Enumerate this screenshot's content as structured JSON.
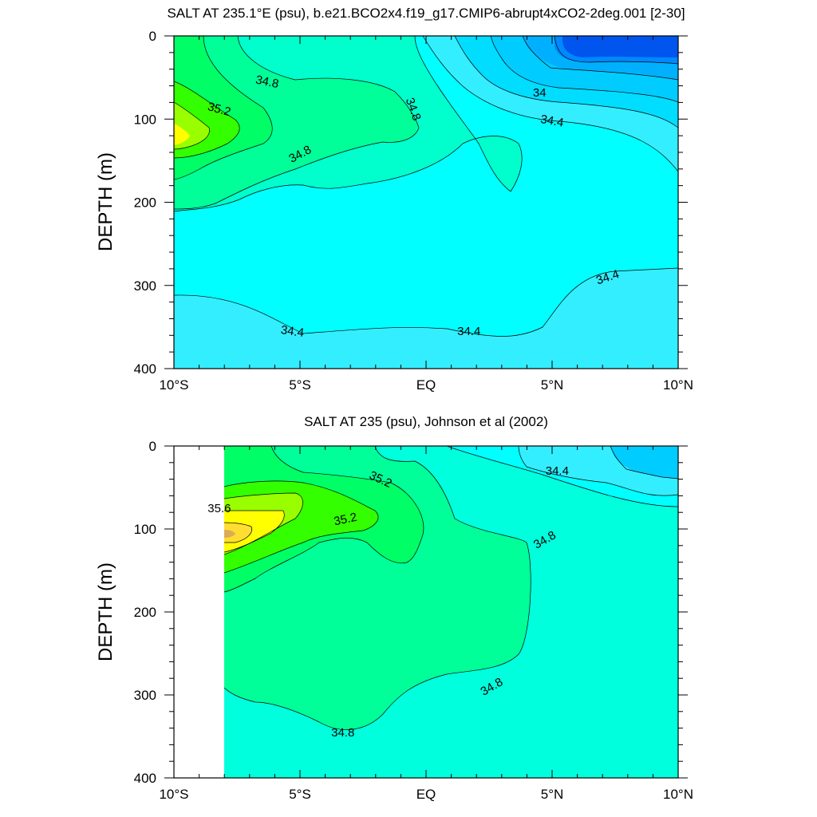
{
  "chart_data": [
    {
      "type": "contour",
      "title": "SALT AT 235.1°E (psu), b.e21.BCO2x4.f19_g17.CMIP6-abrupt4xCO2-2deg.001 [2-30]",
      "xlabel": "",
      "ylabel": "DEPTH (m)",
      "xlim": [
        -10,
        10
      ],
      "ylim": [
        400,
        0
      ],
      "x_ticks": [
        {
          "value": -10,
          "label": "10°S"
        },
        {
          "value": -5,
          "label": "5°S"
        },
        {
          "value": 0,
          "label": "EQ"
        },
        {
          "value": 5,
          "label": "5°N"
        },
        {
          "value": 10,
          "label": "10°N"
        }
      ],
      "y_ticks": [
        {
          "value": 0,
          "label": "0"
        },
        {
          "value": 100,
          "label": "100"
        },
        {
          "value": 200,
          "label": "200"
        },
        {
          "value": 300,
          "label": "300"
        },
        {
          "value": 400,
          "label": "400"
        }
      ],
      "contour_labels": [
        {
          "text": "34.8",
          "x": -6.3,
          "y": 55,
          "angle": 12
        },
        {
          "text": "35.2",
          "x": -8.2,
          "y": 88,
          "angle": 15
        },
        {
          "text": "34.8",
          "x": -0.5,
          "y": 88,
          "angle": 70
        },
        {
          "text": "34.8",
          "x": -5.0,
          "y": 142,
          "angle": -28
        },
        {
          "text": "34",
          "x": 4.5,
          "y": 68,
          "angle": 0
        },
        {
          "text": "34.4",
          "x": 5.0,
          "y": 102,
          "angle": 10
        },
        {
          "text": "34.4",
          "x": 7.2,
          "y": 290,
          "angle": -18
        },
        {
          "text": "34.4",
          "x": -5.3,
          "y": 355,
          "angle": 8
        },
        {
          "text": "34.4",
          "x": 1.7,
          "y": 355,
          "angle": 0
        }
      ]
    },
    {
      "type": "contour",
      "title": "SALT AT 235 (psu), Johnson et al (2002)",
      "xlabel": "",
      "ylabel": "DEPTH (m)",
      "xlim": [
        -10,
        10
      ],
      "ylim": [
        400,
        0
      ],
      "x_ticks": [
        {
          "value": -10,
          "label": "10°S"
        },
        {
          "value": -5,
          "label": "5°S"
        },
        {
          "value": 0,
          "label": "EQ"
        },
        {
          "value": 5,
          "label": "5°N"
        },
        {
          "value": 10,
          "label": "10°N"
        }
      ],
      "y_ticks": [
        {
          "value": 0,
          "label": "0"
        },
        {
          "value": 100,
          "label": "100"
        },
        {
          "value": 200,
          "label": "200"
        },
        {
          "value": 300,
          "label": "300"
        },
        {
          "value": 400,
          "label": "400"
        }
      ],
      "contour_labels": [
        {
          "text": "35.2",
          "x": -1.8,
          "y": 40,
          "angle": 25
        },
        {
          "text": "35.6",
          "x": -8.2,
          "y": 75,
          "angle": 0
        },
        {
          "text": "35.2",
          "x": -3.2,
          "y": 88,
          "angle": -12
        },
        {
          "text": "34.4",
          "x": 5.2,
          "y": 30,
          "angle": 0
        },
        {
          "text": "34.8",
          "x": 4.7,
          "y": 113,
          "angle": -30
        },
        {
          "text": "34.8",
          "x": 2.6,
          "y": 290,
          "angle": -30
        },
        {
          "text": "34.8",
          "x": -3.3,
          "y": 345,
          "angle": 0
        }
      ]
    }
  ]
}
